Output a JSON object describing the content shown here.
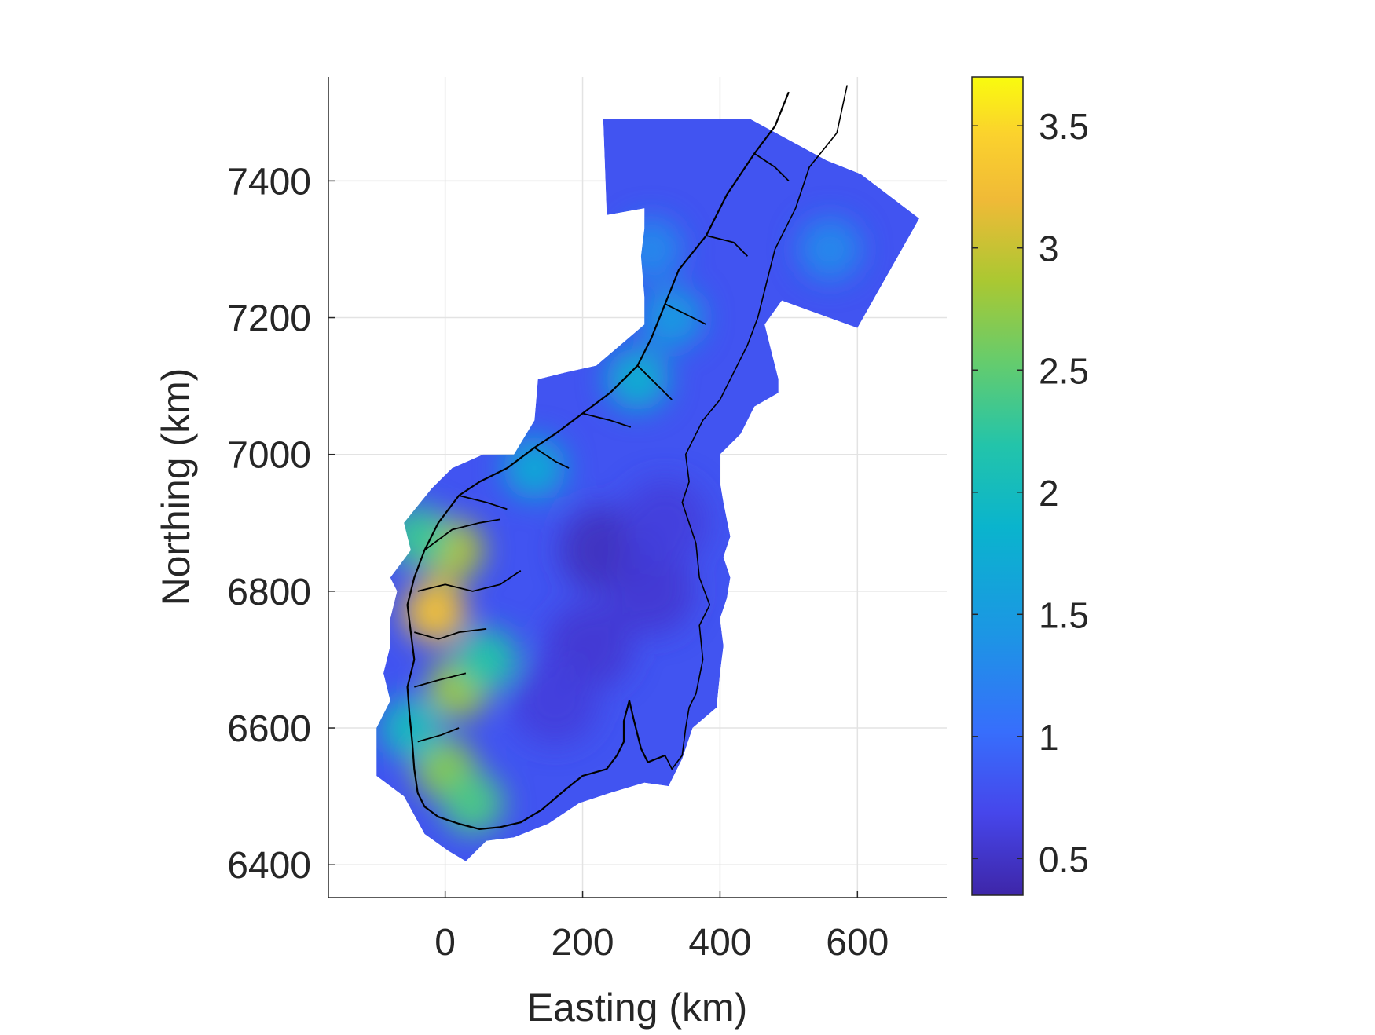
{
  "chart_data": {
    "type": "heatmap",
    "title": "",
    "xlabel": "Easting (km)",
    "ylabel": "Northing (km)",
    "xlim": [
      -170,
      730
    ],
    "ylim": [
      6352,
      7552
    ],
    "xticks": [
      0,
      200,
      400,
      600
    ],
    "yticks": [
      6400,
      6600,
      6800,
      7000,
      7200,
      7400
    ],
    "xtick_labels": [
      "0",
      "200",
      "400",
      "600"
    ],
    "ytick_labels": [
      "6400",
      "6600",
      "6800",
      "7000",
      "7200",
      "7400"
    ],
    "grid": true,
    "colormap": "parula",
    "colorbar": {
      "clim": [
        0.35,
        3.7
      ],
      "ticks": [
        0.5,
        1,
        1.5,
        2,
        2.5,
        3,
        3.5
      ],
      "tick_labels": [
        "0.5",
        "1",
        "1.5",
        "2",
        "2.5",
        "3",
        "3.5"
      ],
      "location": "right"
    },
    "background_value": 0.8,
    "domain_outline": [
      [
        230,
        7490
      ],
      [
        445,
        7490
      ],
      [
        555,
        7430
      ],
      [
        605,
        7410
      ],
      [
        690,
        7345
      ],
      [
        600,
        7185
      ],
      [
        490,
        7225
      ],
      [
        465,
        7190
      ],
      [
        475,
        7150
      ],
      [
        485,
        7110
      ],
      [
        485,
        7090
      ],
      [
        450,
        7070
      ],
      [
        430,
        7030
      ],
      [
        400,
        7000
      ],
      [
        400,
        6960
      ],
      [
        405,
        6930
      ],
      [
        415,
        6880
      ],
      [
        405,
        6850
      ],
      [
        415,
        6820
      ],
      [
        410,
        6790
      ],
      [
        400,
        6760
      ],
      [
        405,
        6720
      ],
      [
        400,
        6680
      ],
      [
        395,
        6630
      ],
      [
        360,
        6600
      ],
      [
        345,
        6555
      ],
      [
        325,
        6515
      ],
      [
        290,
        6520
      ],
      [
        240,
        6505
      ],
      [
        195,
        6490
      ],
      [
        150,
        6460
      ],
      [
        100,
        6440
      ],
      [
        60,
        6435
      ],
      [
        30,
        6405
      ],
      [
        5,
        6420
      ],
      [
        -30,
        6445
      ],
      [
        -60,
        6500
      ],
      [
        -100,
        6530
      ],
      [
        -100,
        6560
      ],
      [
        -100,
        6600
      ],
      [
        -80,
        6640
      ],
      [
        -90,
        6680
      ],
      [
        -80,
        6720
      ],
      [
        -80,
        6760
      ],
      [
        -70,
        6800
      ],
      [
        -80,
        6820
      ],
      [
        -50,
        6860
      ],
      [
        -60,
        6900
      ],
      [
        -20,
        6950
      ],
      [
        10,
        6980
      ],
      [
        55,
        7000
      ],
      [
        100,
        7000
      ],
      [
        130,
        7050
      ],
      [
        135,
        7110
      ],
      [
        175,
        7120
      ],
      [
        220,
        7130
      ],
      [
        290,
        7190
      ],
      [
        290,
        7230
      ],
      [
        285,
        7290
      ],
      [
        290,
        7330
      ],
      [
        290,
        7360
      ],
      [
        235,
        7350
      ]
    ],
    "field_hotspots": [
      {
        "x": -15,
        "y": 6770,
        "value": 3.3
      },
      {
        "x": 10,
        "y": 6860,
        "value": 2.9
      },
      {
        "x": 20,
        "y": 6660,
        "value": 2.8
      },
      {
        "x": 0,
        "y": 6540,
        "value": 2.7
      },
      {
        "x": 40,
        "y": 6490,
        "value": 2.4
      },
      {
        "x": -40,
        "y": 6880,
        "value": 2.3
      },
      {
        "x": 60,
        "y": 6700,
        "value": 2.2
      },
      {
        "x": -50,
        "y": 6600,
        "value": 2.0
      },
      {
        "x": 280,
        "y": 7110,
        "value": 1.8
      },
      {
        "x": 130,
        "y": 6980,
        "value": 1.7
      },
      {
        "x": 330,
        "y": 7200,
        "value": 1.5
      },
      {
        "x": 300,
        "y": 7300,
        "value": 1.3
      },
      {
        "x": 560,
        "y": 7300,
        "value": 1.3
      }
    ],
    "field_coldspots": [
      {
        "x": 230,
        "y": 6860,
        "value": 0.45
      },
      {
        "x": 300,
        "y": 6800,
        "value": 0.55
      },
      {
        "x": 210,
        "y": 6720,
        "value": 0.55
      },
      {
        "x": 160,
        "y": 6640,
        "value": 0.6
      },
      {
        "x": 320,
        "y": 6900,
        "value": 0.6
      }
    ],
    "coastline": [
      [
        -40,
        6505
      ],
      [
        -30,
        6485
      ],
      [
        -10,
        6470
      ],
      [
        20,
        6460
      ],
      [
        50,
        6452
      ],
      [
        80,
        6455
      ],
      [
        110,
        6462
      ],
      [
        140,
        6480
      ],
      [
        175,
        6510
      ],
      [
        200,
        6530
      ],
      [
        235,
        6540
      ],
      [
        250,
        6560
      ],
      [
        260,
        6580
      ],
      [
        260,
        6610
      ],
      [
        268,
        6640
      ],
      [
        275,
        6610
      ],
      [
        285,
        6570
      ],
      [
        295,
        6550
      ],
      [
        320,
        6560
      ]
    ],
    "border": [
      [
        320,
        6560
      ],
      [
        330,
        6540
      ],
      [
        345,
        6560
      ],
      [
        350,
        6600
      ],
      [
        355,
        6630
      ],
      [
        365,
        6650
      ],
      [
        375,
        6700
      ],
      [
        370,
        6750
      ],
      [
        385,
        6780
      ],
      [
        370,
        6820
      ],
      [
        365,
        6870
      ],
      [
        345,
        6930
      ],
      [
        355,
        6960
      ],
      [
        350,
        7000
      ],
      [
        375,
        7050
      ],
      [
        400,
        7080
      ],
      [
        420,
        7120
      ],
      [
        440,
        7160
      ],
      [
        455,
        7200
      ],
      [
        470,
        7260
      ],
      [
        480,
        7300
      ],
      [
        510,
        7360
      ],
      [
        530,
        7420
      ],
      [
        570,
        7470
      ],
      [
        585,
        7540
      ]
    ],
    "west_coast": [
      [
        -40,
        6505
      ],
      [
        -45,
        6540
      ],
      [
        -48,
        6580
      ],
      [
        -52,
        6620
      ],
      [
        -55,
        6660
      ],
      [
        -45,
        6700
      ],
      [
        -50,
        6740
      ],
      [
        -55,
        6780
      ],
      [
        -45,
        6820
      ],
      [
        -30,
        6860
      ],
      [
        -10,
        6900
      ],
      [
        20,
        6940
      ],
      [
        50,
        6960
      ],
      [
        90,
        6980
      ],
      [
        130,
        7010
      ],
      [
        160,
        7030
      ],
      [
        200,
        7060
      ],
      [
        240,
        7090
      ],
      [
        280,
        7130
      ],
      [
        300,
        7170
      ],
      [
        320,
        7220
      ],
      [
        340,
        7270
      ],
      [
        380,
        7320
      ],
      [
        410,
        7380
      ],
      [
        450,
        7440
      ],
      [
        480,
        7480
      ],
      [
        500,
        7530
      ]
    ],
    "fjords": [
      [
        [
          -30,
          6860
        ],
        [
          10,
          6890
        ],
        [
          50,
          6900
        ],
        [
          80,
          6905
        ]
      ],
      [
        [
          -40,
          6800
        ],
        [
          0,
          6810
        ],
        [
          40,
          6800
        ],
        [
          80,
          6810
        ],
        [
          110,
          6830
        ]
      ],
      [
        [
          -45,
          6740
        ],
        [
          -10,
          6730
        ],
        [
          20,
          6740
        ],
        [
          60,
          6745
        ]
      ],
      [
        [
          -45,
          6660
        ],
        [
          -10,
          6670
        ],
        [
          30,
          6680
        ]
      ],
      [
        [
          -40,
          6580
        ],
        [
          -5,
          6590
        ],
        [
          20,
          6600
        ]
      ],
      [
        [
          20,
          6940
        ],
        [
          60,
          6930
        ],
        [
          90,
          6920
        ]
      ],
      [
        [
          130,
          7010
        ],
        [
          160,
          6990
        ],
        [
          180,
          6980
        ]
      ],
      [
        [
          200,
          7060
        ],
        [
          240,
          7050
        ],
        [
          270,
          7040
        ]
      ],
      [
        [
          280,
          7130
        ],
        [
          310,
          7100
        ],
        [
          330,
          7080
        ]
      ],
      [
        [
          320,
          7220
        ],
        [
          360,
          7200
        ],
        [
          380,
          7190
        ]
      ],
      [
        [
          380,
          7320
        ],
        [
          420,
          7310
        ],
        [
          440,
          7290
        ]
      ],
      [
        [
          450,
          7440
        ],
        [
          480,
          7420
        ],
        [
          500,
          7400
        ]
      ]
    ]
  }
}
